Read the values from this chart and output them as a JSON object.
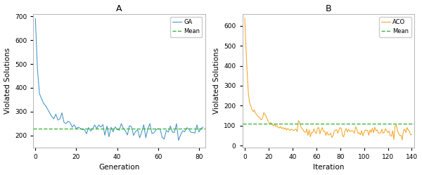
{
  "title_A": "A",
  "title_B": "B",
  "xlabel_A": "Generation",
  "xlabel_B": "Iteration",
  "ylabel": "Violated Solutions",
  "ga_color": "#4393c7",
  "aco_color": "#f4a628",
  "mean_color": "#3db83d",
  "ga_label": "GA",
  "aco_label": "ACO",
  "mean_label": "Mean",
  "ga_mean": 228,
  "aco_mean": 110,
  "ga_xlim": [
    -1,
    83
  ],
  "ga_ylim": [
    150,
    710
  ],
  "aco_xlim": [
    -2,
    142
  ],
  "aco_ylim": [
    -10,
    660
  ],
  "ga_yticks": [
    200,
    300,
    400,
    500,
    600,
    700
  ],
  "aco_yticks": [
    0,
    100,
    200,
    300,
    400,
    500,
    600
  ],
  "ga_xticks": [
    0,
    20,
    40,
    60,
    80
  ],
  "aco_xticks": [
    0,
    20,
    40,
    60,
    80,
    100,
    120,
    140
  ]
}
